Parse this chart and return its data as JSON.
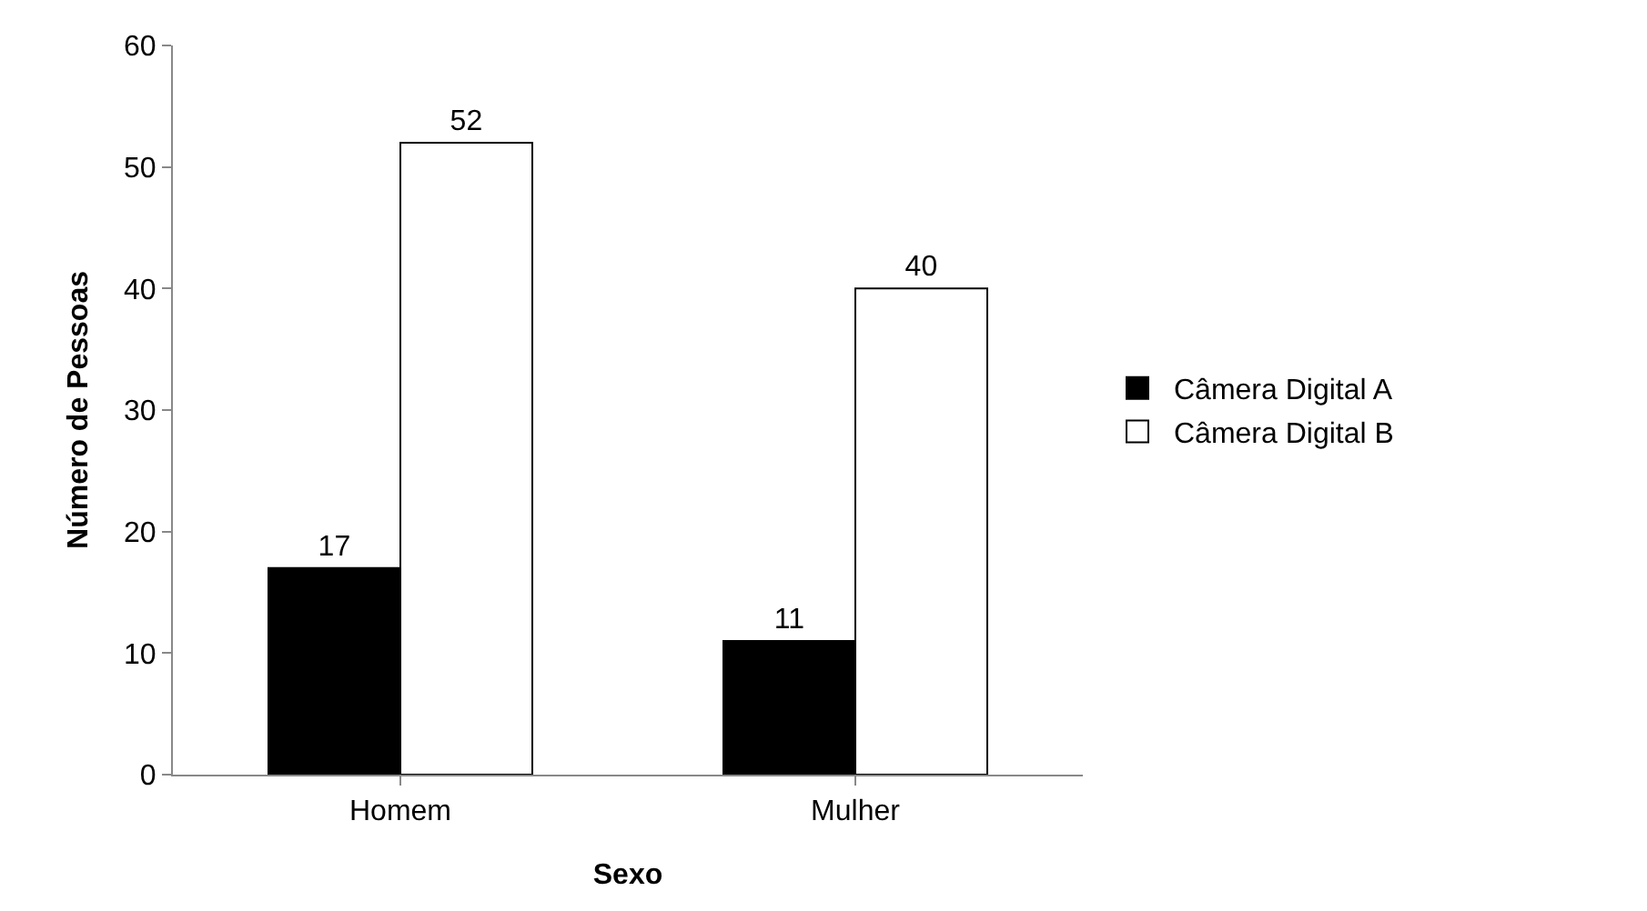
{
  "chart_data": {
    "type": "bar",
    "xlabel": "Sexo",
    "ylabel": "Número de Pessoas",
    "categories": [
      "Homem",
      "Mulher"
    ],
    "series": [
      {
        "name": "Câmera Digital A",
        "color": "#000000",
        "values": [
          17,
          11
        ]
      },
      {
        "name": "Câmera Digital B",
        "color": "#ffffff",
        "values": [
          52,
          40
        ]
      }
    ],
    "ylim": [
      0,
      60
    ],
    "yticks": [
      0,
      10,
      20,
      30,
      40,
      50,
      60
    ],
    "grid": false,
    "legend": "right",
    "data_labels": true
  }
}
